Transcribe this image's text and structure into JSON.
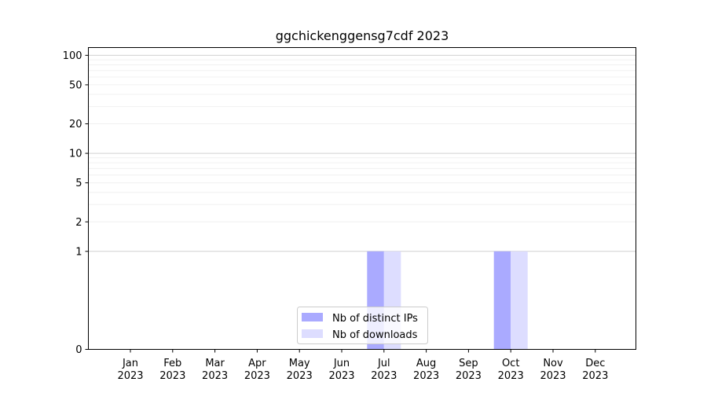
{
  "chart_data": {
    "type": "bar",
    "title": "ggchickenggensg7cdf 2023",
    "xlabel": "",
    "ylabel": "",
    "y_scale": "symlog",
    "ylim": [
      0,
      120
    ],
    "y_ticks": [
      0,
      1,
      2,
      5,
      10,
      20,
      50,
      100
    ],
    "grid": "horizontal",
    "legend_position": "bottom-center",
    "categories": [
      [
        "Jan",
        "2023"
      ],
      [
        "Feb",
        "2023"
      ],
      [
        "Mar",
        "2023"
      ],
      [
        "Apr",
        "2023"
      ],
      [
        "May",
        "2023"
      ],
      [
        "Jun",
        "2023"
      ],
      [
        "Jul",
        "2023"
      ],
      [
        "Aug",
        "2023"
      ],
      [
        "Sep",
        "2023"
      ],
      [
        "Oct",
        "2023"
      ],
      [
        "Nov",
        "2023"
      ],
      [
        "Dec",
        "2023"
      ]
    ],
    "series": [
      {
        "name": "Nb of distinct IPs",
        "color": "#aaaaff",
        "values": [
          0,
          0,
          0,
          0,
          0,
          0,
          1,
          0,
          0,
          1,
          0,
          0
        ]
      },
      {
        "name": "Nb of downloads",
        "color": "#ddddff",
        "values": [
          0,
          0,
          0,
          0,
          0,
          0,
          1,
          0,
          0,
          1,
          0,
          0
        ]
      }
    ]
  }
}
